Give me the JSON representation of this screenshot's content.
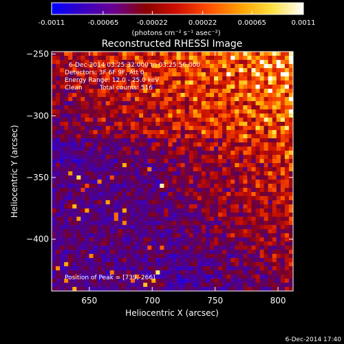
{
  "colorbar": {
    "tick_labels": [
      "-0.0011",
      "-0.00065",
      "-0.00022",
      "0.00022",
      "0.00065",
      "0.0011"
    ],
    "tick_values": [
      -0.0011,
      -0.00065,
      -0.00022,
      0.00022,
      0.00065,
      0.0011
    ],
    "range": [
      -0.0011,
      0.0011
    ],
    "units_label": "(photons cm⁻² s⁻¹ asec⁻²)",
    "palette_stops": [
      "#0000ff",
      "#3a00c0",
      "#6a0090",
      "#8a0000",
      "#d01000",
      "#ff5000",
      "#ffa000",
      "#ffe040",
      "#ffffff"
    ]
  },
  "title": "Reconstructed RHESSI Image",
  "info": {
    "time_range": "6-Dec-2014 03:25:32.000 to 03:25:56.000",
    "detectors": "Detectors: 3F 6F 9F, Att 0",
    "energy": "Energy Range: 12.0 - 25.0 keV",
    "algorithm": "Clean",
    "counts": "Total counts: 516",
    "peak": "Position of Peak = [739,-266]"
  },
  "footer_timestamp": "6-Dec-2014 17:40",
  "chart_data": {
    "type": "heatmap",
    "title": "Reconstructed RHESSI Image",
    "xlabel": "Heliocentric X (arcsec)",
    "ylabel": "Heliocentric Y (arcsec)",
    "xlim": [
      620,
      812
    ],
    "ylim": [
      -442,
      -248
    ],
    "x_ticks": [
      650,
      700,
      750,
      800
    ],
    "y_ticks": [
      -250,
      -300,
      -350,
      -400
    ],
    "x_tick_labels": [
      "650",
      "700",
      "750",
      "800"
    ],
    "y_tick_labels": [
      "−250",
      "−300",
      "−350",
      "−400"
    ],
    "value_range": [
      -0.0011,
      0.0011
    ],
    "peak_position": [
      739,
      -266
    ],
    "colormap": "blue-purple-red-yellow-white"
  },
  "colors": {
    "background": "#000000",
    "text": "#ffffff"
  }
}
